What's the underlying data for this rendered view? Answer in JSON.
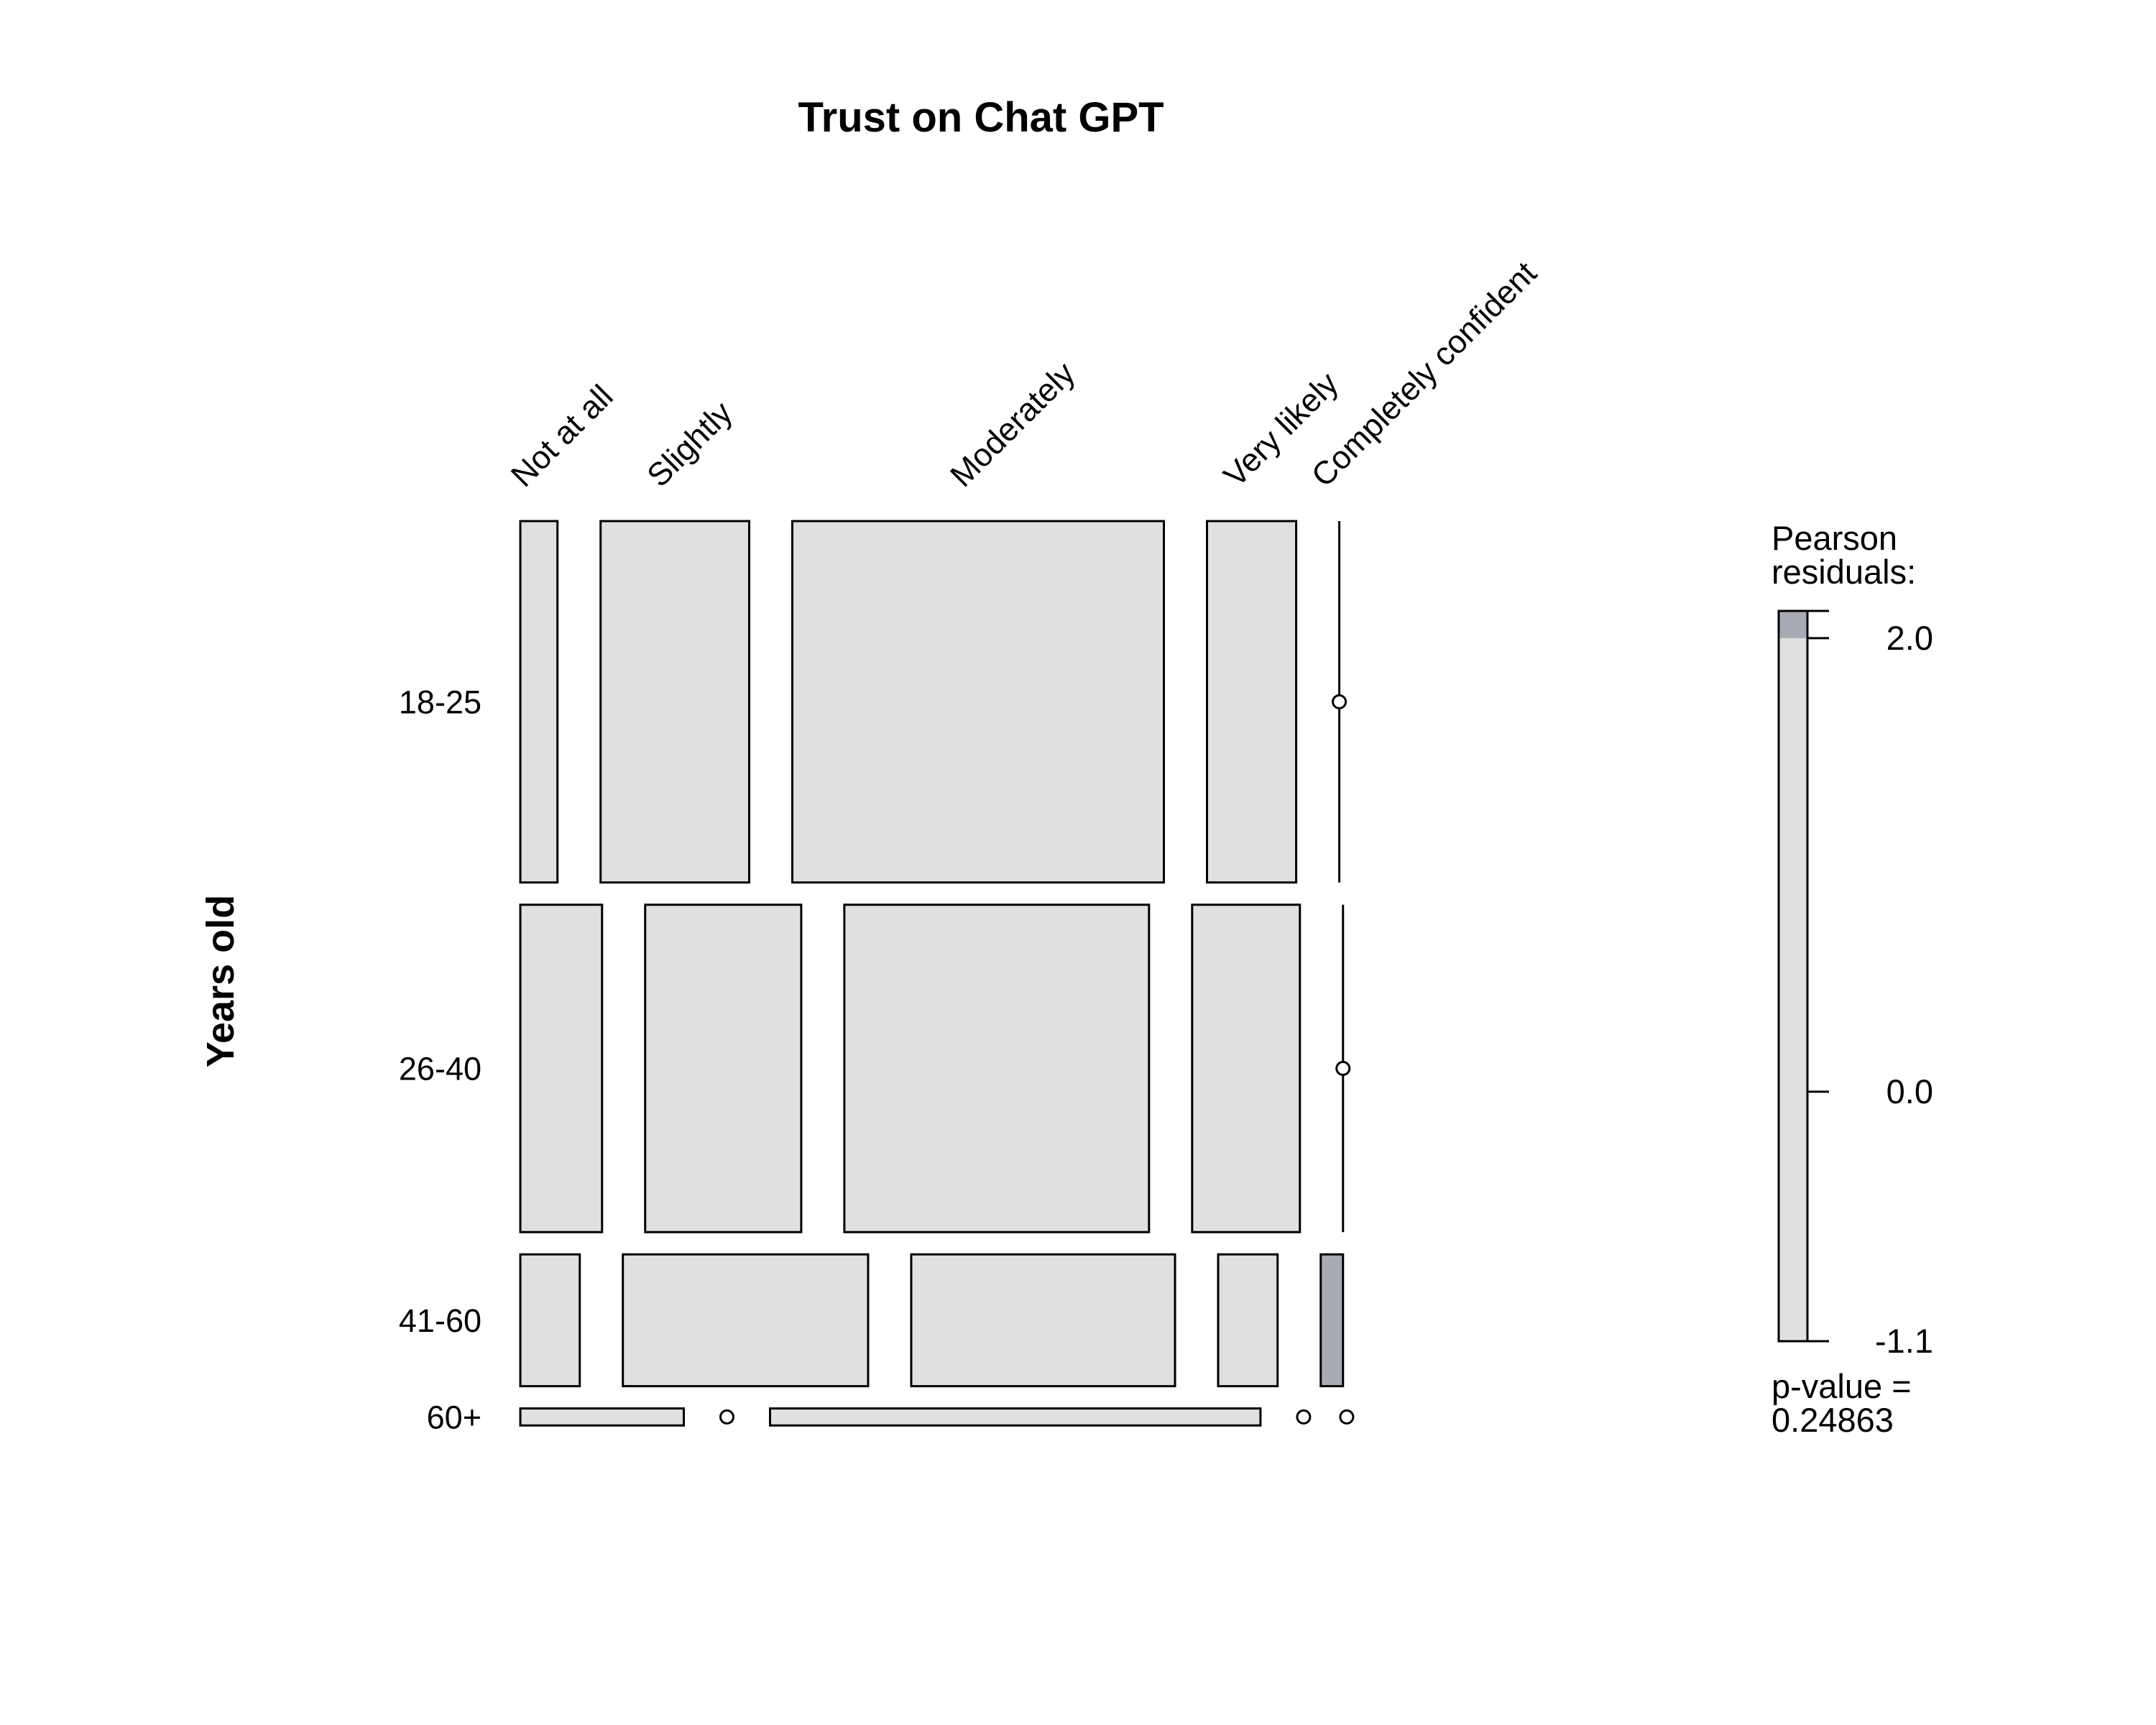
{
  "chart_data": {
    "type": "mosaic",
    "title": "Trust on Chat GPT",
    "ylabel": "Years old",
    "columns": [
      "Not at all",
      "Slightly",
      "Moderately",
      "Very likely",
      "Completely confident"
    ],
    "rows": [
      "18-25",
      "26-40",
      "41-60",
      "60+"
    ],
    "row_proportions": [
      0.425,
      0.385,
      0.155,
      0.02
    ],
    "cell_proportions": [
      [
        0.05,
        0.2,
        0.5,
        0.12,
        0.0
      ],
      [
        0.11,
        0.21,
        0.41,
        0.145,
        0.0
      ],
      [
        0.08,
        0.33,
        0.355,
        0.08,
        0.03
      ],
      [
        0.22,
        0.0,
        0.66,
        0.0,
        0.0
      ]
    ],
    "shaded_cells": [
      [
        2,
        4
      ]
    ],
    "colors": {
      "tile": "#e0e0e0",
      "shaded": "#a8aab4",
      "border": "#000000"
    },
    "legend": {
      "title_line1": "Pearson",
      "title_line2": "residuals:",
      "ticks": [
        "2.0",
        "0.0",
        "-1.1"
      ],
      "max": 2.12,
      "min": -1.1,
      "shade_threshold": 2.0,
      "pvalue_line1": "p-value =",
      "pvalue_line2": "0.24863"
    }
  }
}
